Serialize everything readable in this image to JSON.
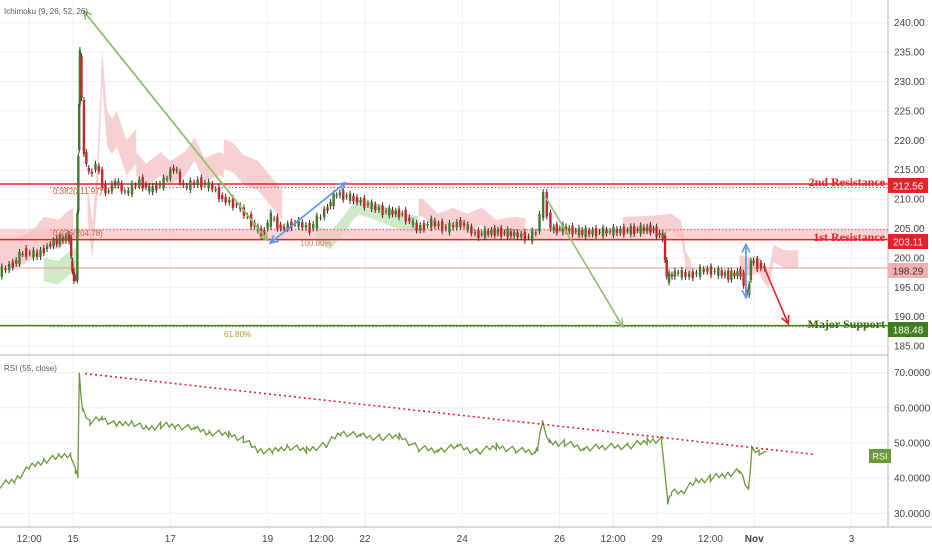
{
  "chart_data": [
    {
      "type": "candlestick",
      "indicator_label": "Ichimoku (9, 26, 52, 26)",
      "y_ticks": [
        185,
        190,
        195,
        200,
        205,
        210,
        215,
        220,
        225,
        230,
        235,
        240
      ],
      "y_tick_labels": [
        "185.00",
        "190.00",
        "195.00",
        "200.00",
        "205.00",
        "210.00",
        "215.00",
        "220.00",
        "225.00",
        "230.00",
        "235.00",
        "240.00"
      ],
      "ylim": [
        184,
        242.5
      ],
      "x_ticks": [
        {
          "label": "12:00",
          "t": 0.6
        },
        {
          "label": "15",
          "t": 1.5
        },
        {
          "label": "17",
          "t": 3.5
        },
        {
          "label": "19",
          "t": 5.5
        },
        {
          "label": "12:00",
          "t": 6.6
        },
        {
          "label": "22",
          "t": 7.5
        },
        {
          "label": "24",
          "t": 9.5
        },
        {
          "label": "26",
          "t": 11.5
        },
        {
          "label": "12:00",
          "t": 12.6
        },
        {
          "label": "29",
          "t": 13.5
        },
        {
          "label": "12:00",
          "t": 14.6
        },
        {
          "label": "Nov",
          "t": 15.5
        },
        {
          "label": "3",
          "t": 17.5
        }
      ],
      "xlim": [
        0,
        18.25
      ],
      "price_path": [
        [
          0,
          197.5
        ],
        [
          0.3,
          199
        ],
        [
          0.5,
          201
        ],
        [
          0.8,
          200.5
        ],
        [
          1.0,
          202
        ],
        [
          1.2,
          203
        ],
        [
          1.45,
          203.5
        ],
        [
          1.5,
          197
        ],
        [
          1.58,
          196.5
        ],
        [
          1.62,
          218
        ],
        [
          1.65,
          235
        ],
        [
          1.75,
          218
        ],
        [
          1.85,
          214
        ],
        [
          2.0,
          216
        ],
        [
          2.2,
          211
        ],
        [
          2.4,
          213
        ],
        [
          2.6,
          211
        ],
        [
          2.9,
          213
        ],
        [
          3.1,
          211.5
        ],
        [
          3.4,
          213
        ],
        [
          3.6,
          215.5
        ],
        [
          3.8,
          212
        ],
        [
          4.1,
          213
        ],
        [
          4.4,
          212
        ],
        [
          4.6,
          210
        ],
        [
          4.9,
          209
        ],
        [
          5.2,
          206
        ],
        [
          5.4,
          204
        ],
        [
          5.6,
          207
        ],
        [
          5.8,
          205
        ],
        [
          6.1,
          206
        ],
        [
          6.4,
          205
        ],
        [
          6.7,
          208
        ],
        [
          6.95,
          211
        ],
        [
          7.3,
          210
        ],
        [
          7.6,
          209
        ],
        [
          7.9,
          208
        ],
        [
          8.3,
          207.5
        ],
        [
          8.6,
          205
        ],
        [
          8.9,
          206
        ],
        [
          9.2,
          205
        ],
        [
          9.5,
          206
        ],
        [
          9.8,
          204
        ],
        [
          10.2,
          204.5
        ],
        [
          10.6,
          204
        ],
        [
          10.9,
          203.5
        ],
        [
          11.05,
          204.5
        ],
        [
          11.2,
          210.5
        ],
        [
          11.35,
          205
        ],
        [
          11.6,
          205
        ],
        [
          12.0,
          204.3
        ],
        [
          12.5,
          204.5
        ],
        [
          13.0,
          204.7
        ],
        [
          13.4,
          205
        ],
        [
          13.65,
          203.5
        ],
        [
          13.72,
          196.5
        ],
        [
          13.9,
          197.5
        ],
        [
          14.2,
          197
        ],
        [
          14.5,
          198
        ],
        [
          14.8,
          197.5
        ],
        [
          15.0,
          197
        ],
        [
          15.25,
          197.5
        ],
        [
          15.38,
          193
        ],
        [
          15.45,
          199.5
        ],
        [
          15.6,
          198.8
        ],
        [
          15.75,
          198.29
        ]
      ],
      "cloud_notes": "Shaded Ichimoku cloud regions (green and red)",
      "levels": [
        {
          "name": "2nd Resistance",
          "value": 212.56,
          "label": "212.56",
          "color": "#e8202a",
          "style": "solid"
        },
        {
          "name": "1st Resistance",
          "value": 203.11,
          "label": "203.11",
          "color": "#e8202a",
          "style": "solid"
        },
        {
          "name": "Major Support",
          "value": 188.48,
          "label": "188.48",
          "color": "#3f7d1f",
          "style": "solid"
        },
        {
          "name": "current",
          "value": 198.29,
          "label": "198.29",
          "color": "#f08c8c",
          "style": "thin"
        }
      ],
      "fib_levels": [
        {
          "label": "0.382(211.97)",
          "value": 211.97,
          "color": "#e05050"
        },
        {
          "label": "0.236(204.78)",
          "value": 204.78,
          "color": "#e05050"
        },
        {
          "label": "61.80%",
          "value": 188.3,
          "color": "#b0a020"
        },
        {
          "label": "100.00%",
          "value": 203.1,
          "color": "#d08060"
        }
      ],
      "arrows": [
        {
          "color": "#8fbf6a",
          "from": [
            1.72,
            242
          ],
          "to": [
            5.5,
            203
          ]
        },
        {
          "color": "#6699ee",
          "from": [
            5.55,
            202.5
          ],
          "to": [
            7.1,
            212.8
          ]
        },
        {
          "color": "#8fbf6a",
          "from": [
            11.2,
            210.5
          ],
          "to": [
            12.8,
            188.3
          ]
        },
        {
          "color": "#6699ee",
          "from": [
            15.33,
            202.3
          ],
          "to": [
            15.33,
            193.2
          ]
        },
        {
          "color": "#e8202a",
          "from": [
            15.7,
            198.5
          ],
          "to": [
            16.2,
            188.8
          ]
        }
      ]
    },
    {
      "type": "line",
      "indicator_label": "RSI (55, close)",
      "series_badge": "RSI",
      "y_ticks": [
        30,
        40,
        50,
        60,
        70
      ],
      "y_tick_labels": [
        "30.0000",
        "40.0000",
        "50.0000",
        "60.0000",
        "70.0000"
      ],
      "ylim": [
        27,
        73
      ],
      "values_path": [
        [
          0,
          38
        ],
        [
          0.3,
          39.5
        ],
        [
          0.6,
          43
        ],
        [
          0.9,
          45
        ],
        [
          1.2,
          46
        ],
        [
          1.45,
          47
        ],
        [
          1.55,
          42
        ],
        [
          1.6,
          41
        ],
        [
          1.63,
          69.5
        ],
        [
          1.7,
          59
        ],
        [
          1.85,
          56
        ],
        [
          2.1,
          57
        ],
        [
          2.4,
          55
        ],
        [
          2.7,
          56
        ],
        [
          3.0,
          54
        ],
        [
          3.3,
          55
        ],
        [
          3.6,
          55
        ],
        [
          4.0,
          54
        ],
        [
          4.3,
          53
        ],
        [
          4.7,
          52.5
        ],
        [
          5.0,
          51
        ],
        [
          5.3,
          48
        ],
        [
          5.6,
          47.5
        ],
        [
          5.9,
          49
        ],
        [
          6.3,
          48
        ],
        [
          6.7,
          49.5
        ],
        [
          7.0,
          53
        ],
        [
          7.4,
          52
        ],
        [
          7.8,
          51.5
        ],
        [
          8.2,
          52
        ],
        [
          8.6,
          48.5
        ],
        [
          9.0,
          48
        ],
        [
          9.4,
          49
        ],
        [
          9.8,
          47.5
        ],
        [
          10.2,
          49
        ],
        [
          10.6,
          48
        ],
        [
          11.0,
          47.5
        ],
        [
          11.05,
          48.5
        ],
        [
          11.15,
          56
        ],
        [
          11.3,
          50
        ],
        [
          11.6,
          50
        ],
        [
          12.0,
          48.5
        ],
        [
          12.5,
          49
        ],
        [
          12.9,
          49
        ],
        [
          13.3,
          50.5
        ],
        [
          13.6,
          51
        ],
        [
          13.72,
          33
        ],
        [
          13.8,
          36
        ],
        [
          14.0,
          36
        ],
        [
          14.3,
          39
        ],
        [
          14.6,
          40
        ],
        [
          14.9,
          41
        ],
        [
          15.2,
          42
        ],
        [
          15.38,
          36.5
        ],
        [
          15.45,
          48
        ],
        [
          15.6,
          47.5
        ],
        [
          15.75,
          46.8
        ]
      ],
      "trendline": {
        "from": [
          1.75,
          69.7
        ],
        "to": [
          16.7,
          46.8
        ],
        "color": "#e8202a",
        "style": "dotted"
      },
      "line_color": "#6a9a3a"
    }
  ]
}
